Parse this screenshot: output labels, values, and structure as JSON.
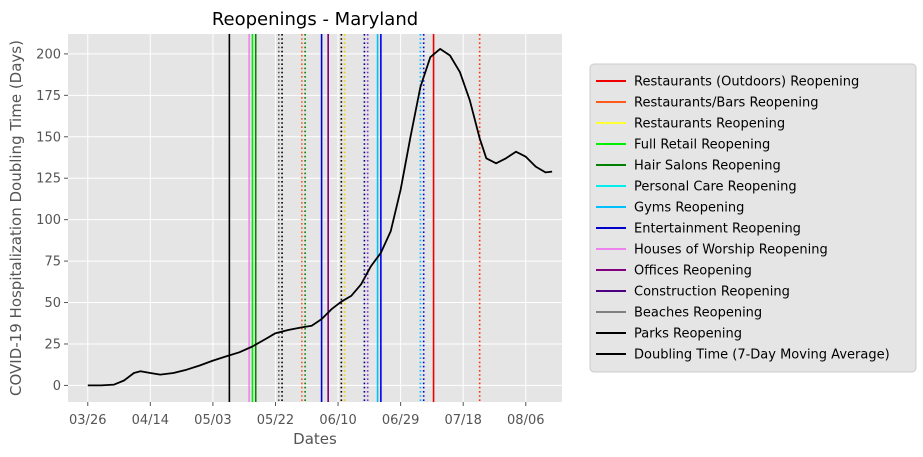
{
  "chart_data": {
    "type": "line",
    "title": "Reopenings - Maryland",
    "xlabel": "Dates",
    "ylabel": "COVID-19 Hospitalization Doubling Time (Days)",
    "year": 2020,
    "xlim": [
      "2020-03-20",
      "2020-08-17"
    ],
    "ylim": [
      -10,
      212
    ],
    "x_ticks": [
      {
        "date": "2020-03-26",
        "label": "03/26"
      },
      {
        "date": "2020-04-14",
        "label": "04/14"
      },
      {
        "date": "2020-05-03",
        "label": "05/03"
      },
      {
        "date": "2020-05-22",
        "label": "05/22"
      },
      {
        "date": "2020-06-10",
        "label": "06/10"
      },
      {
        "date": "2020-06-29",
        "label": "06/29"
      },
      {
        "date": "2020-07-18",
        "label": "07/18"
      },
      {
        "date": "2020-08-06",
        "label": "08/06"
      }
    ],
    "y_ticks": [
      0,
      25,
      50,
      75,
      100,
      125,
      150,
      175,
      200
    ],
    "grid": true,
    "legend_position": "right, outside plot",
    "series": [
      {
        "name": "Doubling Time (7-Day Moving Average)",
        "color": "#000000",
        "points": [
          [
            "2020-03-26",
            0
          ],
          [
            "2020-03-30",
            0
          ],
          [
            "2020-04-03",
            0.5
          ],
          [
            "2020-04-06",
            3
          ],
          [
            "2020-04-09",
            7.5
          ],
          [
            "2020-04-11",
            8.5
          ],
          [
            "2020-04-14",
            7.5
          ],
          [
            "2020-04-17",
            6.5
          ],
          [
            "2020-04-21",
            7.5
          ],
          [
            "2020-04-25",
            9.5
          ],
          [
            "2020-04-29",
            12
          ],
          [
            "2020-05-03",
            15
          ],
          [
            "2020-05-07",
            17.5
          ],
          [
            "2020-05-11",
            20
          ],
          [
            "2020-05-15",
            23.5
          ],
          [
            "2020-05-19",
            28
          ],
          [
            "2020-05-22",
            31.5
          ],
          [
            "2020-05-26",
            33.5
          ],
          [
            "2020-05-30",
            35
          ],
          [
            "2020-06-02",
            36
          ],
          [
            "2020-06-05",
            40
          ],
          [
            "2020-06-08",
            46
          ],
          [
            "2020-06-11",
            50.5
          ],
          [
            "2020-06-14",
            54
          ],
          [
            "2020-06-17",
            61
          ],
          [
            "2020-06-20",
            72
          ],
          [
            "2020-06-23",
            80
          ],
          [
            "2020-06-26",
            93
          ],
          [
            "2020-06-29",
            118
          ],
          [
            "2020-07-02",
            150
          ],
          [
            "2020-07-05",
            180
          ],
          [
            "2020-07-08",
            198
          ],
          [
            "2020-07-11",
            203
          ],
          [
            "2020-07-14",
            199
          ],
          [
            "2020-07-17",
            189
          ],
          [
            "2020-07-20",
            172
          ],
          [
            "2020-07-23",
            149
          ],
          [
            "2020-07-25",
            137
          ],
          [
            "2020-07-28",
            134
          ],
          [
            "2020-07-31",
            137
          ],
          [
            "2020-08-03",
            141
          ],
          [
            "2020-08-06",
            138
          ],
          [
            "2020-08-09",
            132
          ],
          [
            "2020-08-12",
            128.5
          ],
          [
            "2020-08-14",
            129
          ]
        ]
      }
    ],
    "reopening_lines": [
      {
        "date": "2020-05-08",
        "color": "#000000",
        "style": "solid"
      },
      {
        "date": "2020-05-14",
        "color": "#ee82ee",
        "style": "solid"
      },
      {
        "date": "2020-05-15",
        "color": "#00ee00",
        "style": "solid"
      },
      {
        "date": "2020-05-16",
        "color": "#008000",
        "style": "solid"
      },
      {
        "date": "2020-05-23",
        "color": "#555555",
        "style": "dotted"
      },
      {
        "date": "2020-05-24",
        "color": "#000000",
        "style": "dotted"
      },
      {
        "date": "2020-05-30",
        "color": "#ff5a1a",
        "style": "dotted"
      },
      {
        "date": "2020-05-31",
        "color": "#008000",
        "style": "dotted"
      },
      {
        "date": "2020-06-05",
        "color": "#0000cc",
        "style": "solid"
      },
      {
        "date": "2020-06-07",
        "color": "#7b007b",
        "style": "solid"
      },
      {
        "date": "2020-06-11",
        "color": "#000000",
        "style": "dotted"
      },
      {
        "date": "2020-06-12",
        "color": "#ffcc00",
        "style": "dotted"
      },
      {
        "date": "2020-06-18",
        "color": "#000080",
        "style": "dotted"
      },
      {
        "date": "2020-06-19",
        "color": "#8a2be2",
        "style": "dotted"
      },
      {
        "date": "2020-06-22",
        "color": "#00bfff",
        "style": "solid"
      },
      {
        "date": "2020-06-23",
        "color": "#0000ee",
        "style": "solid"
      },
      {
        "date": "2020-07-05",
        "color": "#00bfff",
        "style": "dotted"
      },
      {
        "date": "2020-07-06",
        "color": "#0000ee",
        "style": "dotted"
      },
      {
        "date": "2020-07-09",
        "color": "#ee0000",
        "style": "solid"
      },
      {
        "date": "2020-07-23",
        "color": "#ff3300",
        "style": "dotted"
      }
    ],
    "legend": [
      {
        "label": "Restaurants (Outdoors) Reopening",
        "color": "#ee0000"
      },
      {
        "label": "Restaurants/Bars Reopening",
        "color": "#ff5a1a"
      },
      {
        "label": "Restaurants Reopening",
        "color": "#ffff33"
      },
      {
        "label": "Full Retail Reopening",
        "color": "#00ee00"
      },
      {
        "label": "Hair Salons Reopening",
        "color": "#008000"
      },
      {
        "label": "Personal Care Reopening",
        "color": "#00eeee"
      },
      {
        "label": "Gyms Reopening",
        "color": "#00bfff"
      },
      {
        "label": "Entertainment Reopening",
        "color": "#0000cc"
      },
      {
        "label": "Houses of Worship Reopening",
        "color": "#ee82ee"
      },
      {
        "label": "Offices Reopening",
        "color": "#800080"
      },
      {
        "label": "Construction Reopening",
        "color": "#4b0082"
      },
      {
        "label": "Beaches Reopening",
        "color": "#808080"
      },
      {
        "label": "Parks Reopening",
        "color": "#000000"
      },
      {
        "label": "Doubling Time (7-Day Moving Average)",
        "color": "#000000"
      }
    ]
  }
}
